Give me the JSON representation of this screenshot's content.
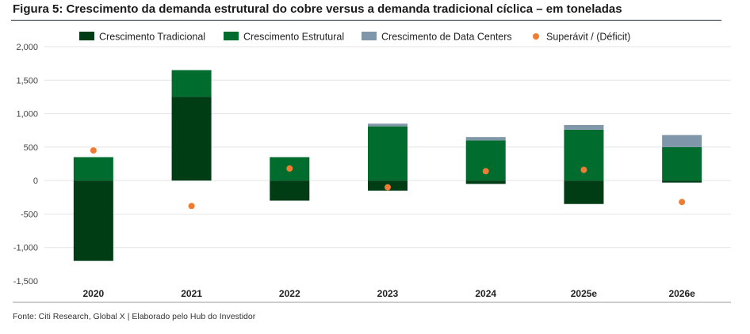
{
  "figure_title": "Figura 5: Crescimento da demanda estrutural do cobre versus a demanda tradicional cíclica – em toneladas",
  "source": "Fonte: Citi Research, Global X | Elaborado pelo Hub do Investidor",
  "colors": {
    "tradicional": "#003d14",
    "estrutural": "#006d2e",
    "data_centers": "#7f97a9",
    "superavit": "#f07b33",
    "grid": "#e4e4e4",
    "axis": "#9a9a9a"
  },
  "chart_data": {
    "type": "bar",
    "stacked": true,
    "title": "",
    "xlabel": "",
    "ylabel": "",
    "categories": [
      "2020",
      "2021",
      "2022",
      "2023",
      "2024",
      "2025e",
      "2026e"
    ],
    "ylim": [
      -1500,
      2000
    ],
    "yticks": [
      2000,
      1500,
      1000,
      500,
      0,
      -500,
      -1000,
      -1500
    ],
    "ytick_labels": [
      "2,000",
      "1,500",
      "1,000",
      "500",
      "0",
      "-500",
      "-1,000",
      "-1,500"
    ],
    "legend_position": "top",
    "grid": true,
    "series": [
      {
        "name": "Crescimento Tradicional",
        "kind": "bar",
        "color_key": "tradicional",
        "values": [
          -1200,
          1250,
          -300,
          -150,
          -50,
          -350,
          -30
        ]
      },
      {
        "name": "Crescimento Estrutural",
        "kind": "bar",
        "color_key": "estrutural",
        "values": [
          350,
          400,
          350,
          810,
          600,
          760,
          500
        ]
      },
      {
        "name": "Crescimento de Data Centers",
        "kind": "bar",
        "color_key": "data_centers",
        "values": [
          0,
          0,
          0,
          40,
          50,
          70,
          180
        ]
      },
      {
        "name": "Superávit / (Déficit)",
        "kind": "point",
        "color_key": "superavit",
        "values": [
          450,
          -380,
          180,
          -100,
          140,
          160,
          -320
        ]
      }
    ]
  }
}
